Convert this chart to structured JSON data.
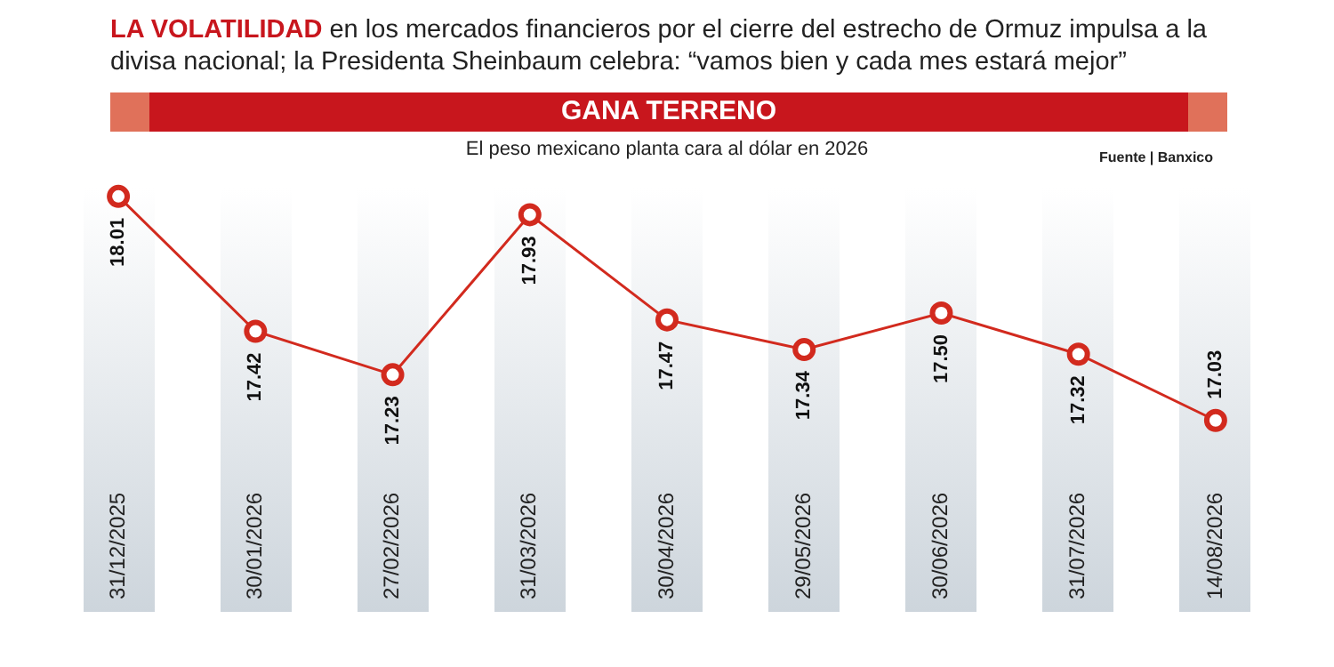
{
  "chart_data": {
    "type": "line",
    "title": "LA VOLATILIDAD en los mercados financieros por el cierre del estrecho de Ormuz impulsa a la divisa nacional; la Presidenta Sheinbaum celebra: “vamos bien y cada mes estará mejor”",
    "subtitle": "GANA TERRENO",
    "annotations": [
      "El peso mexicano planta cara al dólar en 2026",
      "Fuente | Banxico"
    ],
    "categories": [
      "31/12/2025",
      "30/01/2026",
      "27/02/2026",
      "31/03/2026",
      "30/04/2026",
      "29/05/2026",
      "30/06/2026",
      "31/07/2026",
      "14/08/2026"
    ],
    "values": [
      18.01,
      17.42,
      17.23,
      17.93,
      17.47,
      17.34,
      17.5,
      17.32,
      17.03
    ],
    "value_labels": [
      "18.01",
      "17.42",
      "17.23",
      "17.93",
      "17.47",
      "17.34",
      "17.50",
      "17.32",
      "17.03"
    ],
    "color": "#d22a1e",
    "marker": "circle",
    "legend": false
  }
}
